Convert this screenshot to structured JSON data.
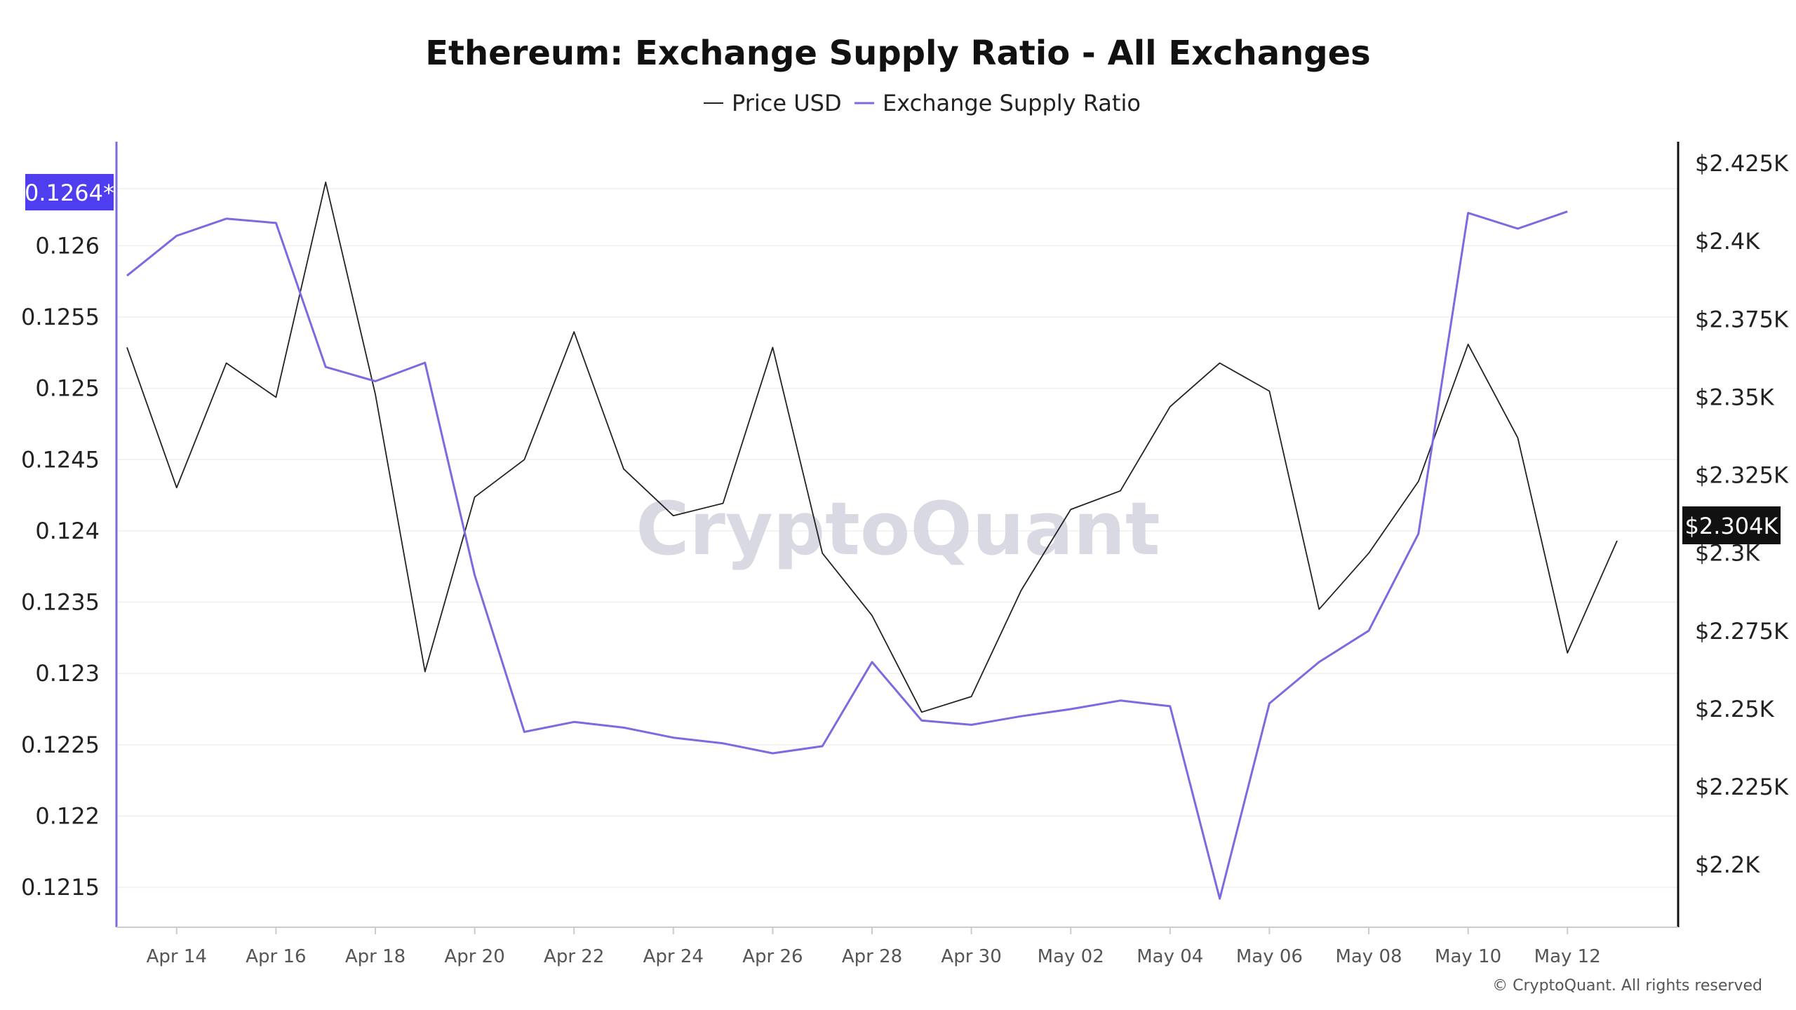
{
  "chart_data": {
    "type": "line",
    "title": "Ethereum: Exchange Supply Ratio - All Exchanges",
    "legend_position": "top-center",
    "grid": true,
    "x": [
      "Apr 13",
      "Apr 14",
      "Apr 15",
      "Apr 16",
      "Apr 17",
      "Apr 18",
      "Apr 19",
      "Apr 20",
      "Apr 21",
      "Apr 22",
      "Apr 23",
      "Apr 24",
      "Apr 25",
      "Apr 26",
      "Apr 27",
      "Apr 28",
      "Apr 29",
      "Apr 30",
      "May 01",
      "May 02",
      "May 03",
      "May 04",
      "May 05",
      "May 06",
      "May 07",
      "May 08",
      "May 09",
      "May 10",
      "May 11",
      "May 12",
      "May 13"
    ],
    "x_tick_labels": [
      "Apr 14",
      "Apr 16",
      "Apr 18",
      "Apr 20",
      "Apr 22",
      "Apr 24",
      "Apr 26",
      "Apr 28",
      "Apr 30",
      "May 02",
      "May 04",
      "May 06",
      "May 08",
      "May 10",
      "May 12"
    ],
    "series": [
      {
        "name": "Price USD",
        "axis": "right",
        "color": "#222222",
        "values": [
          2366,
          2321,
          2361,
          2350,
          2419,
          2351,
          2262,
          2318,
          2330,
          2371,
          2327,
          2312,
          2316,
          2366,
          2300,
          2280,
          2249,
          2254,
          2288,
          2314,
          2320,
          2347,
          2361,
          2352,
          2282,
          2300,
          2323,
          2367,
          2337,
          2268,
          2304
        ]
      },
      {
        "name": "Exchange Supply Ratio",
        "axis": "left",
        "color": "#7b6ae0",
        "values": [
          0.12579,
          0.12607,
          0.12619,
          0.12616,
          0.12515,
          0.12505,
          0.12518,
          0.12369,
          0.12259,
          0.12266,
          0.12262,
          0.12255,
          0.12251,
          0.12244,
          0.12249,
          0.12308,
          0.12267,
          0.12264,
          0.1227,
          0.12275,
          0.12281,
          0.12277,
          0.12142,
          0.12279,
          0.12308,
          0.1233,
          0.12398,
          0.12623,
          0.12612,
          0.12624,
          null
        ]
      }
    ],
    "y_left": {
      "ticks": [
        0.1215,
        0.122,
        0.1225,
        0.123,
        0.1235,
        0.124,
        0.1245,
        0.125,
        0.1255,
        0.126
      ],
      "tick_labels": [
        "0.1215",
        "0.122",
        "0.1225",
        "0.123",
        "0.1235",
        "0.124",
        "0.1245",
        "0.125",
        "0.1255",
        "0.126"
      ],
      "range": [
        0.12122,
        0.12673
      ]
    },
    "y_right": {
      "ticks": [
        2200,
        2225,
        2250,
        2275,
        2300,
        2325,
        2350,
        2375,
        2400,
        2425
      ],
      "tick_labels": [
        "$2.2K",
        "$2.225K",
        "$2.25K",
        "$2.275K",
        "$2.3K",
        "$2.325K",
        "$2.35K",
        "$2.375K",
        "$2.4K",
        "$2.425K"
      ],
      "range": [
        2180,
        2432
      ]
    },
    "current_value_left": "0.1264*",
    "current_value_right": "$2.304K",
    "current_value_left_color": "#4f3df0",
    "current_value_right_color": "#111111"
  },
  "watermark": "CryptoQuant",
  "credit": "© CryptoQuant. All rights reserved"
}
